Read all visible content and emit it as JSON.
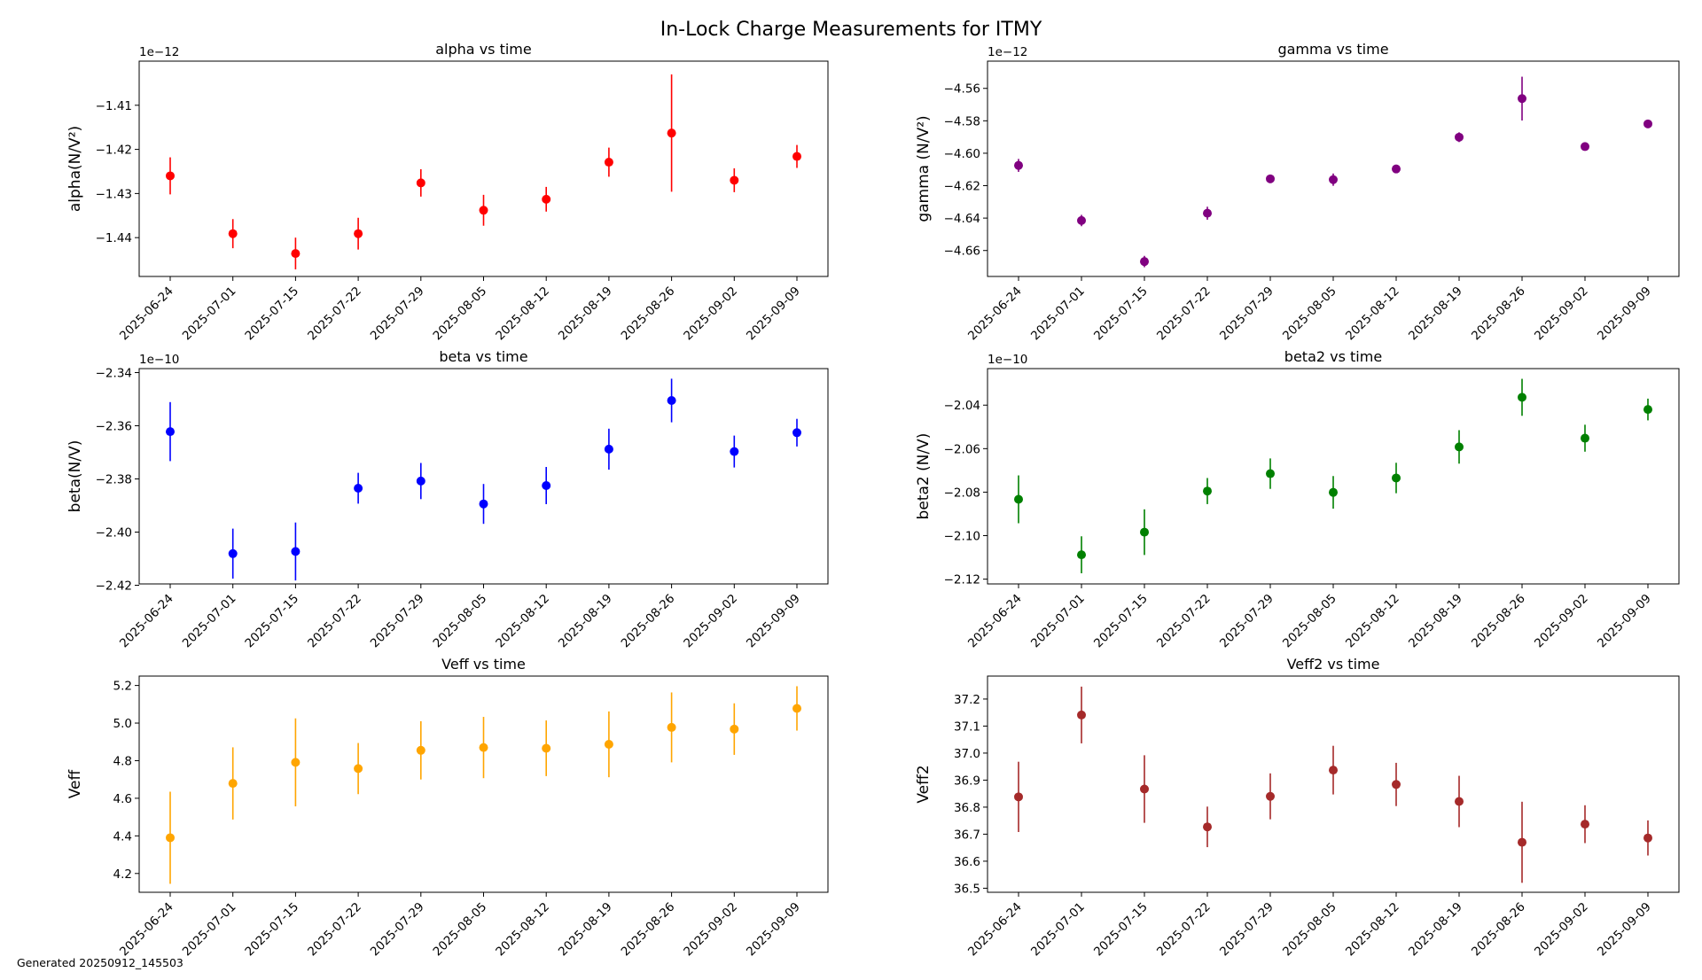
{
  "figure": {
    "suptitle": "In-Lock Charge Measurements for ITMY",
    "footer": "Generated 20250912_145503"
  },
  "chart_data": [
    {
      "type": "scatter",
      "error_bars": true,
      "title": "alpha vs time",
      "ylabel": "alpha(N/V²)",
      "xlabel": "",
      "offset_label": "1e−12",
      "color": "#ff0000",
      "x": [
        "2025-06-24",
        "2025-07-01",
        "2025-07-15",
        "2025-07-22",
        "2025-07-29",
        "2025-08-05",
        "2025-08-12",
        "2025-08-19",
        "2025-08-26",
        "2025-09-02",
        "2025-09-09"
      ],
      "values": [
        -1.426,
        -1.4391,
        -1.4436,
        -1.4391,
        -1.4276,
        -1.4338,
        -1.4313,
        -1.4229,
        -1.4163,
        -1.427,
        -1.4216
      ],
      "errors": [
        0.0042,
        0.0033,
        0.0036,
        0.0036,
        0.0031,
        0.0035,
        0.0028,
        0.0033,
        0.0133,
        0.0027,
        0.0026
      ],
      "ylim": [
        -1.4488,
        -1.4
      ],
      "yticks": [
        -1.44,
        -1.43,
        -1.42,
        -1.41
      ],
      "ytick_labels": [
        "−1.44",
        "−1.43",
        "−1.42",
        "−1.41"
      ],
      "grid": false
    },
    {
      "type": "scatter",
      "error_bars": true,
      "title": "gamma vs time",
      "ylabel": "gamma (N/V²)",
      "xlabel": "",
      "offset_label": "1e−12",
      "color": "#800080",
      "x": [
        "2025-06-24",
        "2025-07-01",
        "2025-07-15",
        "2025-07-22",
        "2025-07-29",
        "2025-08-05",
        "2025-08-12",
        "2025-08-19",
        "2025-08-26",
        "2025-09-02",
        "2025-09-09"
      ],
      "values": [
        -4.6075,
        -4.6415,
        -4.6668,
        -4.637,
        -4.6158,
        -4.6163,
        -4.6097,
        -4.5901,
        -4.5663,
        -4.5959,
        -4.5819
      ],
      "errors": [
        0.004,
        0.0035,
        0.0035,
        0.004,
        0.0025,
        0.0038,
        0.002,
        0.003,
        0.0135,
        0.002,
        0.002
      ],
      "ylim": [
        -4.676,
        -4.5432
      ],
      "yticks": [
        -4.66,
        -4.64,
        -4.62,
        -4.6,
        -4.58,
        -4.56
      ],
      "ytick_labels": [
        "−4.66",
        "−4.64",
        "−4.62",
        "−4.60",
        "−4.58",
        "−4.56"
      ],
      "grid": false
    },
    {
      "type": "scatter",
      "error_bars": true,
      "title": "beta vs time",
      "ylabel": "beta(N/V)",
      "xlabel": "",
      "offset_label": "1e−10",
      "color": "#0000ff",
      "x": [
        "2025-06-24",
        "2025-07-01",
        "2025-07-15",
        "2025-07-22",
        "2025-07-29",
        "2025-08-05",
        "2025-08-12",
        "2025-08-19",
        "2025-08-26",
        "2025-09-02",
        "2025-09-09"
      ],
      "values": [
        -2.3622,
        -2.4081,
        -2.4073,
        -2.3835,
        -2.3808,
        -2.3894,
        -2.3825,
        -2.3688,
        -2.3505,
        -2.3697,
        -2.3626
      ],
      "errors": [
        0.0111,
        0.0094,
        0.0109,
        0.0058,
        0.0068,
        0.0075,
        0.007,
        0.0077,
        0.0082,
        0.006,
        0.0052
      ],
      "ylim": [
        -2.4195,
        -2.3385
      ],
      "yticks": [
        -2.42,
        -2.4,
        -2.38,
        -2.36,
        -2.34
      ],
      "ytick_labels": [
        "−2.42",
        "−2.40",
        "−2.38",
        "−2.36",
        "−2.34"
      ],
      "grid": false
    },
    {
      "type": "scatter",
      "error_bars": true,
      "title": "beta2 vs time",
      "ylabel": "beta2 (N/V)",
      "xlabel": "",
      "offset_label": "1e−10",
      "color": "#008000",
      "x": [
        "2025-06-24",
        "2025-07-01",
        "2025-07-15",
        "2025-07-22",
        "2025-07-29",
        "2025-08-05",
        "2025-08-12",
        "2025-08-19",
        "2025-08-26",
        "2025-09-02",
        "2025-09-09"
      ],
      "values": [
        -2.0833,
        -2.1088,
        -2.0984,
        -2.0795,
        -2.0715,
        -2.0801,
        -2.0735,
        -2.0592,
        -2.0364,
        -2.0552,
        -2.042
      ],
      "errors": [
        0.011,
        0.0085,
        0.0105,
        0.006,
        0.007,
        0.0075,
        0.007,
        0.0077,
        0.0085,
        0.0062,
        0.005
      ],
      "ylim": [
        -2.1222,
        -2.0232
      ],
      "yticks": [
        -2.12,
        -2.1,
        -2.08,
        -2.06,
        -2.04
      ],
      "ytick_labels": [
        "−2.12",
        "−2.10",
        "−2.08",
        "−2.06",
        "−2.04"
      ],
      "grid": false
    },
    {
      "type": "scatter",
      "error_bars": true,
      "title": "Veff vs time",
      "ylabel": "Veff",
      "xlabel": "",
      "offset_label": "",
      "color": "#ffa500",
      "x": [
        "2025-06-24",
        "2025-07-01",
        "2025-07-15",
        "2025-07-22",
        "2025-07-29",
        "2025-08-05",
        "2025-08-12",
        "2025-08-19",
        "2025-08-26",
        "2025-09-02",
        "2025-09-09"
      ],
      "values": [
        4.39,
        4.679,
        4.791,
        4.758,
        4.855,
        4.87,
        4.866,
        4.887,
        4.977,
        4.968,
        5.078
      ],
      "errors": [
        0.245,
        0.192,
        0.234,
        0.136,
        0.155,
        0.163,
        0.148,
        0.175,
        0.186,
        0.137,
        0.118
      ],
      "ylim": [
        4.1,
        5.25
      ],
      "yticks": [
        4.2,
        4.4,
        4.6,
        4.8,
        5.0,
        5.2
      ],
      "ytick_labels": [
        "4.2",
        "4.4",
        "4.6",
        "4.8",
        "5.0",
        "5.2"
      ],
      "grid": false
    },
    {
      "type": "scatter",
      "error_bars": true,
      "title": "Veff2 vs time",
      "ylabel": "Veff2",
      "xlabel": "",
      "offset_label": "",
      "color": "#a52a2a",
      "x": [
        "2025-06-24",
        "2025-07-01",
        "2025-07-15",
        "2025-07-22",
        "2025-07-29",
        "2025-08-05",
        "2025-08-12",
        "2025-08-19",
        "2025-08-26",
        "2025-09-02",
        "2025-09-09"
      ],
      "values": [
        36.838,
        37.141,
        36.867,
        36.727,
        36.84,
        36.937,
        36.884,
        36.821,
        36.67,
        36.737,
        36.686
      ],
      "errors": [
        0.13,
        0.105,
        0.125,
        0.075,
        0.085,
        0.09,
        0.08,
        0.095,
        0.15,
        0.07,
        0.065
      ],
      "ylim": [
        36.485,
        37.285
      ],
      "yticks": [
        36.5,
        36.6,
        36.7,
        36.8,
        36.9,
        37.0,
        37.1,
        37.2
      ],
      "ytick_labels": [
        "36.5",
        "36.6",
        "36.7",
        "36.8",
        "36.9",
        "37.0",
        "37.1",
        "37.2"
      ],
      "grid": false
    }
  ]
}
